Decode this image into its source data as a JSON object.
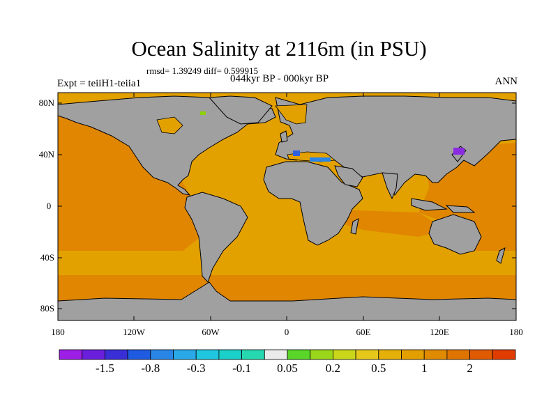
{
  "title": "Ocean Salinity at 2116m (in PSU)",
  "stats": "rmsd= 1.39249 diff= 0.599915",
  "subtitle": "044kyr BP - 000kyr BP",
  "experiment": "Expt = teiiH1-teiia1",
  "season": "ANN",
  "colors": {
    "land": "#a0a0a0",
    "ocean_positive_light": "#e3a100",
    "ocean_positive_mid": "#e08600",
    "coastline": "#000000",
    "blue_anomaly": "#3060e0",
    "violet_anomaly": "#8a2be2",
    "green_anomaly": "#8cd100"
  },
  "map": {
    "lat_ticks": [
      "80N",
      "40N",
      "0",
      "40S",
      "80S"
    ],
    "lon_ticks": [
      "180",
      "120W",
      "60W",
      "0",
      "60E",
      "120E",
      "180"
    ]
  },
  "colorbar": {
    "colors": [
      "#9d1fe6",
      "#6a1fdc",
      "#3a2fd6",
      "#1f5be0",
      "#2a86e6",
      "#2aa9e8",
      "#20c6e0",
      "#1ad0c8",
      "#26d8b0",
      "#ebebeb",
      "#5ad62a",
      "#9ad61a",
      "#c9d61a",
      "#e6c81a",
      "#e6b00a",
      "#e39e00",
      "#e08a00",
      "#e07400",
      "#e05a00",
      "#e03c00"
    ],
    "labels": [
      "-1.5",
      "-0.8",
      "-0.3",
      "-0.1",
      "0.05",
      "0.2",
      "0.5",
      "1",
      "2"
    ]
  }
}
